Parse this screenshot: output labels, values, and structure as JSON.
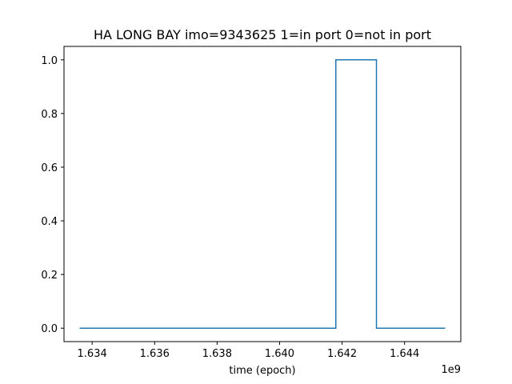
{
  "chart_data": {
    "type": "line",
    "title": "HA LONG BAY imo=9343625 1=in port 0=not in port",
    "xlabel": "time (epoch)",
    "ylabel": "",
    "x_offset_label": "1e9",
    "x_ticks": [
      1.634,
      1.636,
      1.638,
      1.64,
      1.642,
      1.644
    ],
    "x_tick_labels": [
      "1.634",
      "1.636",
      "1.638",
      "1.640",
      "1.642",
      "1.644"
    ],
    "y_ticks": [
      0.0,
      0.2,
      0.4,
      0.6,
      0.8,
      1.0
    ],
    "y_tick_labels": [
      "0.0",
      "0.2",
      "0.4",
      "0.6",
      "0.8",
      "1.0"
    ],
    "xlim": [
      1.6331,
      1.6458
    ],
    "ylim": [
      -0.05,
      1.05
    ],
    "grid": false,
    "series": [
      {
        "color": "#1f77b4",
        "step": "post",
        "x": [
          1.6336,
          1.6418,
          1.6431,
          1.6453
        ],
        "y": [
          0,
          1,
          0,
          0
        ]
      }
    ]
  }
}
